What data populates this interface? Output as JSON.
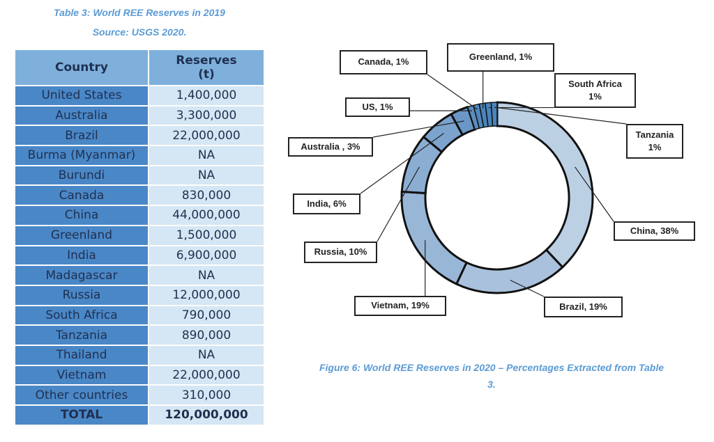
{
  "table": {
    "title": "Table 3: World REE Reserves in 2019",
    "source": "Source: USGS 2020.",
    "headers": [
      "Country",
      "Reserves",
      "(t)"
    ],
    "rows": [
      [
        "United States",
        "1,400,000"
      ],
      [
        "Australia",
        "3,300,000"
      ],
      [
        "Brazil",
        "22,000,000"
      ],
      [
        "Burma (Myanmar)",
        "NA"
      ],
      [
        "Burundi",
        "NA"
      ],
      [
        "Canada",
        "830,000"
      ],
      [
        "China",
        "44,000,000"
      ],
      [
        "Greenland",
        "1,500,000"
      ],
      [
        "India",
        "6,900,000"
      ],
      [
        "Madagascar",
        "NA"
      ],
      [
        "Russia",
        "12,000,000"
      ],
      [
        "South Africa",
        "790,000"
      ],
      [
        "Tanzania",
        "890,000"
      ],
      [
        "Thailand",
        "NA"
      ],
      [
        "Vietnam",
        "22,000,000"
      ],
      [
        "Other countries",
        "310,000"
      ]
    ],
    "total": [
      "TOTAL",
      "120,000,000"
    ]
  },
  "chart_data": {
    "type": "pie",
    "variant": "donut",
    "caption": "Figure 6: World REE Reserves in 2020 – Percentages Extracted from Table 3.",
    "slices": [
      {
        "name": "China",
        "value": 38,
        "label": "China, 38%",
        "color": "#bcd0e4"
      },
      {
        "name": "Brazil",
        "value": 19,
        "label": "Brazil, 19%",
        "color": "#a9c1dc"
      },
      {
        "name": "Vietnam",
        "value": 19,
        "label": "Vietnam, 19%",
        "color": "#98b6d6"
      },
      {
        "name": "Russia",
        "value": 10,
        "label": "Russia, 10%",
        "color": "#8badd2"
      },
      {
        "name": "India",
        "value": 6,
        "label": "India, 6%",
        "color": "#7ba3cd"
      },
      {
        "name": "Australia",
        "value": 3,
        "label": "Australia , 3%",
        "color": "#6a97c6"
      },
      {
        "name": "US",
        "value": 1,
        "label": "US, 1%",
        "color": "#5a8cbf"
      },
      {
        "name": "Canada",
        "value": 1,
        "label": "Canada, 1%",
        "color": "#5088bd"
      },
      {
        "name": "Greenland",
        "value": 1,
        "label": "Greenland, 1%",
        "color": "#4a84bb"
      },
      {
        "name": "South Africa",
        "value": 1,
        "label": "South Africa\n1%",
        "color": "#4a84bb"
      },
      {
        "name": "Tanzania",
        "value": 1,
        "label": "Tanzania\n1%",
        "color": "#4a84bb"
      }
    ]
  }
}
